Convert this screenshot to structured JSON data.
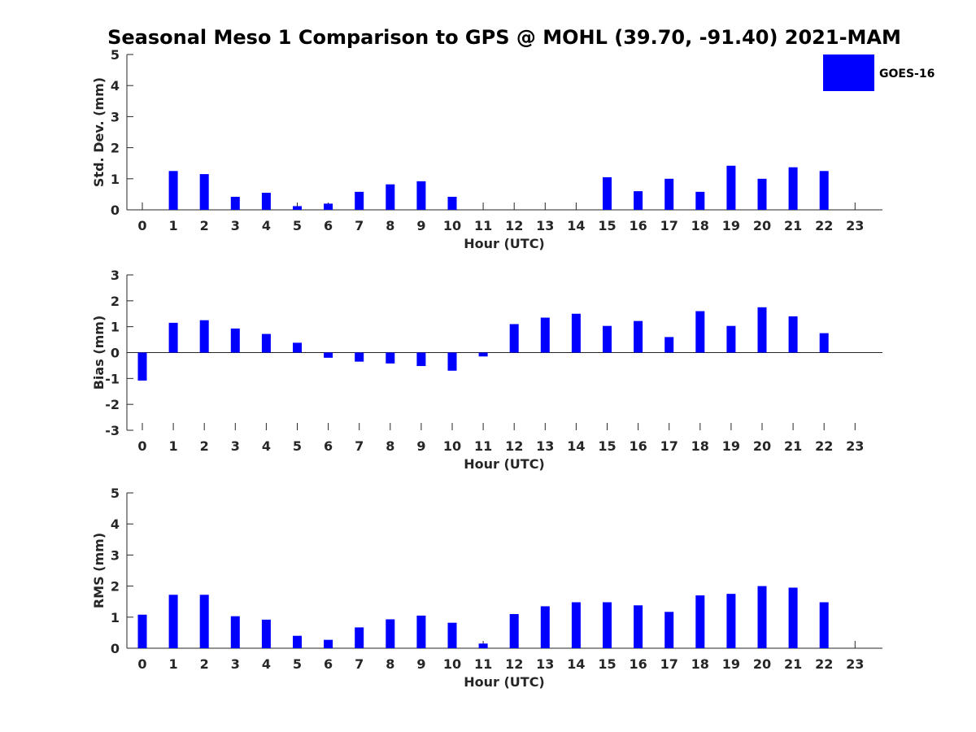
{
  "chart_data": [
    {
      "type": "bar",
      "title": "Seasonal Meso 1 Comparison to GPS @ MOHL (39.70, -91.40) 2021-MAM",
      "xlabel": "Hour (UTC)",
      "ylabel": "Std. Dev. (mm)",
      "ylim": [
        0,
        5
      ],
      "yticks": [
        0,
        1,
        2,
        3,
        4,
        5
      ],
      "categories": [
        "0",
        "1",
        "2",
        "3",
        "4",
        "5",
        "6",
        "7",
        "8",
        "9",
        "10",
        "11",
        "12",
        "13",
        "14",
        "15",
        "16",
        "17",
        "18",
        "19",
        "20",
        "21",
        "22",
        "23"
      ],
      "series": [
        {
          "name": "GOES-16",
          "color": "#0000ff",
          "values": [
            null,
            1.25,
            1.15,
            0.42,
            0.55,
            0.12,
            0.2,
            0.58,
            0.82,
            0.92,
            0.42,
            null,
            null,
            null,
            null,
            1.05,
            0.6,
            1.0,
            0.58,
            1.42,
            1.0,
            1.37,
            1.25,
            null
          ]
        }
      ]
    },
    {
      "type": "bar",
      "xlabel": "Hour (UTC)",
      "ylabel": "Bias (mm)",
      "ylim": [
        -3,
        3
      ],
      "yticks": [
        -3,
        -2,
        -1,
        0,
        1,
        2,
        3
      ],
      "categories": [
        "0",
        "1",
        "2",
        "3",
        "4",
        "5",
        "6",
        "7",
        "8",
        "9",
        "10",
        "11",
        "12",
        "13",
        "14",
        "15",
        "16",
        "17",
        "18",
        "19",
        "20",
        "21",
        "22",
        "23"
      ],
      "series": [
        {
          "name": "GOES-16",
          "color": "#0000ff",
          "values": [
            -1.08,
            1.15,
            1.25,
            0.93,
            0.72,
            0.38,
            -0.2,
            -0.35,
            -0.42,
            -0.52,
            -0.7,
            -0.15,
            1.1,
            1.35,
            1.5,
            1.03,
            1.22,
            0.6,
            1.6,
            1.03,
            1.75,
            1.4,
            0.75,
            null
          ]
        }
      ]
    },
    {
      "type": "bar",
      "xlabel": "Hour (UTC)",
      "ylabel": "RMS (mm)",
      "ylim": [
        0,
        5
      ],
      "yticks": [
        0,
        1,
        2,
        3,
        4,
        5
      ],
      "categories": [
        "0",
        "1",
        "2",
        "3",
        "4",
        "5",
        "6",
        "7",
        "8",
        "9",
        "10",
        "11",
        "12",
        "13",
        "14",
        "15",
        "16",
        "17",
        "18",
        "19",
        "20",
        "21",
        "22",
        "23"
      ],
      "series": [
        {
          "name": "GOES-16",
          "color": "#0000ff",
          "values": [
            1.08,
            1.72,
            1.72,
            1.03,
            0.92,
            0.4,
            0.27,
            0.67,
            0.93,
            1.05,
            0.82,
            0.15,
            1.1,
            1.35,
            1.48,
            1.48,
            1.38,
            1.17,
            1.7,
            1.75,
            2.0,
            1.95,
            1.48,
            null
          ]
        }
      ]
    }
  ],
  "legend": {
    "label": "GOES-16",
    "color": "#0000ff",
    "position": "top-right"
  }
}
